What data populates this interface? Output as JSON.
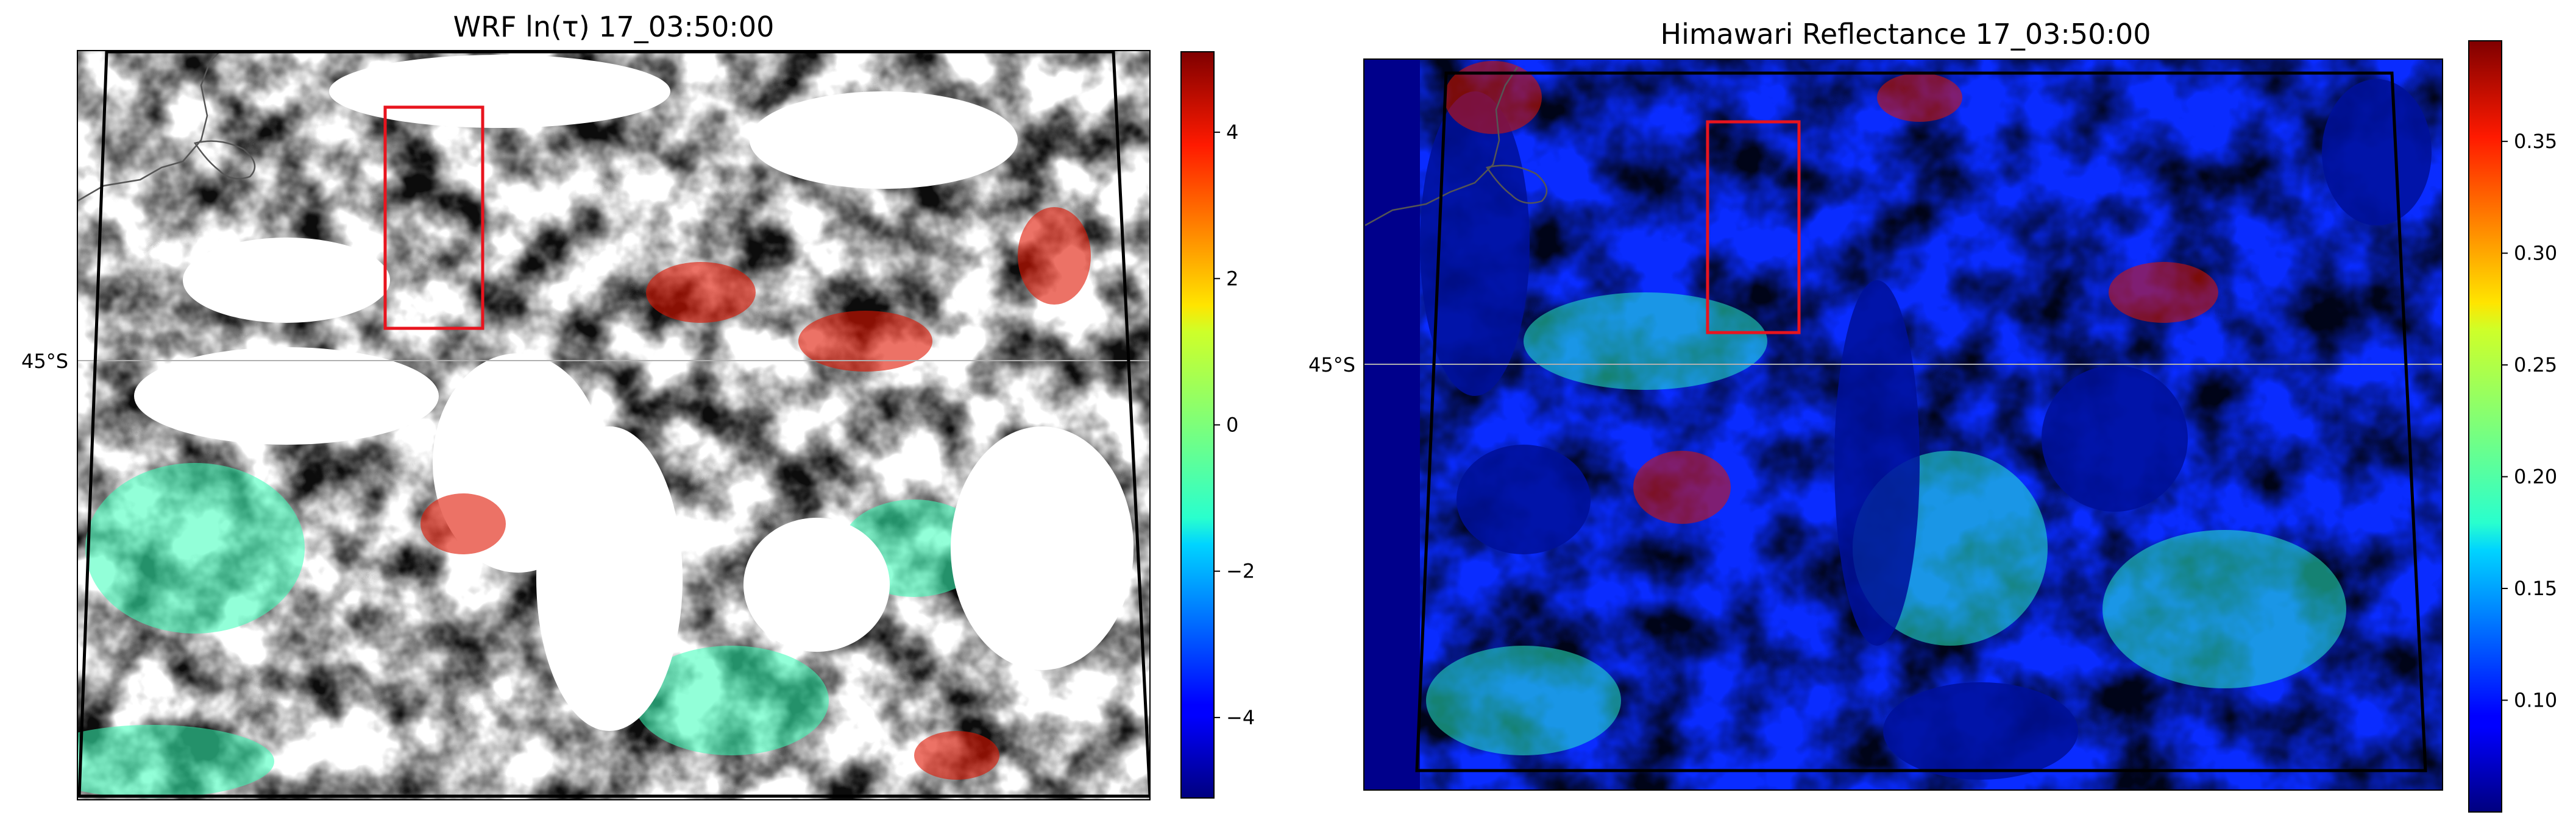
{
  "panels": [
    {
      "title": "WRF ln(τ) 17_03:50:00",
      "lat_label": "45°S",
      "colorbar": {
        "colormap": "jet",
        "range": [
          -5.1,
          5.1
        ],
        "ticks": [
          "4",
          "2",
          "0",
          "−2",
          "−4"
        ],
        "tick_values": [
          4,
          2,
          0,
          -2,
          -4
        ]
      },
      "missing_color": "#ffffff"
    },
    {
      "title": "Himawari Reflectance 17_03:50:00",
      "lat_label": "45°S",
      "colorbar": {
        "colormap": "jet",
        "range": [
          0.05,
          0.395
        ],
        "ticks": [
          "0.35",
          "0.30",
          "0.25",
          "0.20",
          "0.15",
          "0.10"
        ],
        "tick_values": [
          0.35,
          0.3,
          0.25,
          0.2,
          0.15,
          0.1
        ]
      },
      "missing_color": "#00008b"
    }
  ],
  "colors": {
    "highlight_box": "#e8141e",
    "domain_outline": "#000000",
    "coastline": "#555555"
  }
}
